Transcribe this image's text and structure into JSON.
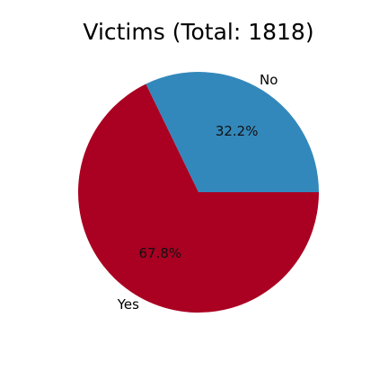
{
  "chart_data": {
    "type": "pie",
    "title": "Victims (Total: 1818)",
    "categories": [
      "No",
      "Yes"
    ],
    "values": [
      32.2,
      67.8
    ],
    "value_labels": [
      "32.2%",
      "67.8%"
    ],
    "colors": [
      "#3388bb",
      "#aa0022"
    ],
    "legend": "none",
    "start_angle_deg": 0,
    "direction": "counterclockwise"
  }
}
